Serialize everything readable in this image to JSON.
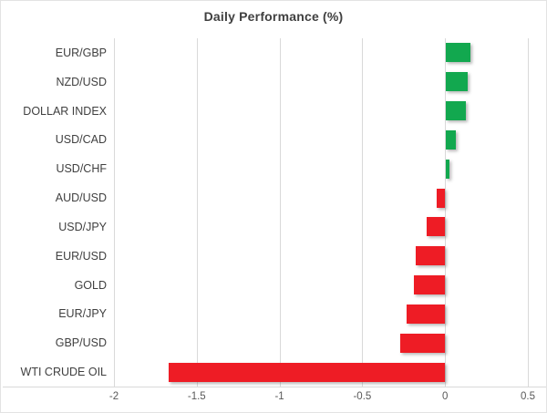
{
  "title": "Daily Performance (%)",
  "colors": {
    "positive_bar": "#12a84f",
    "negative_bar": "#ee1c25",
    "gridline": "#d9d9d9",
    "axis_line": "#d9d9d9",
    "title_text": "#404040",
    "category_text": "#404040",
    "tick_text": "#595959",
    "chart_border": "#e3e3e3",
    "background": "#ffffff"
  },
  "chart_data": {
    "type": "bar",
    "orientation": "horizontal",
    "title": "Daily Performance (%)",
    "categories": [
      "EUR/GBP",
      "NZD/USD",
      "DOLLAR INDEX",
      "USD/CAD",
      "USD/CHF",
      "AUD/USD",
      "USD/JPY",
      "EUR/USD",
      "GOLD",
      "EUR/JPY",
      "GBP/USD",
      "WTI CRUDE OIL"
    ],
    "values": [
      0.15,
      0.13,
      0.12,
      0.06,
      0.02,
      -0.05,
      -0.11,
      -0.18,
      -0.19,
      -0.23,
      -0.27,
      -1.67
    ],
    "xlabel": "",
    "ylabel": "",
    "xlim": [
      -2,
      0.5
    ],
    "xticks": [
      -2,
      -1.5,
      -1,
      -0.5,
      0,
      0.5
    ],
    "xtick_labels": [
      "-2",
      "-1.5",
      "-1",
      "-0.5",
      "0",
      "0.5"
    ],
    "grid": "vertical-gridlines-on",
    "legend": "none",
    "value_color_rule": "green if positive, red if negative"
  }
}
